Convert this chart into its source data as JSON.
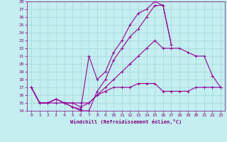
{
  "xlabel": "Windchill (Refroidissement éolien,°C)",
  "xlim": [
    -0.5,
    23.5
  ],
  "ylim": [
    14,
    28
  ],
  "xticks": [
    0,
    1,
    2,
    3,
    4,
    5,
    6,
    7,
    8,
    9,
    10,
    11,
    12,
    13,
    14,
    15,
    16,
    17,
    18,
    19,
    20,
    21,
    22,
    23
  ],
  "yticks": [
    14,
    15,
    16,
    17,
    18,
    19,
    20,
    21,
    22,
    23,
    24,
    25,
    26,
    27,
    28
  ],
  "bg_color": "#c4eef0",
  "line_color": "#990099",
  "grid_color": "#a0d8d8",
  "lines": [
    {
      "x": [
        0,
        1,
        2,
        3,
        4,
        5,
        6,
        7,
        8,
        9,
        10,
        11,
        12,
        13,
        14,
        15,
        16,
        17,
        18,
        19,
        20,
        21,
        22,
        23
      ],
      "y": [
        17,
        15,
        15,
        15,
        15,
        15,
        15,
        15,
        16,
        16.5,
        17,
        17,
        17,
        17.5,
        17.5,
        17.5,
        16.5,
        16.5,
        16.5,
        16.5,
        17,
        17,
        17,
        17
      ]
    },
    {
      "x": [
        0,
        1,
        2,
        3,
        4,
        5,
        6,
        7,
        8,
        9,
        10,
        11,
        12,
        13,
        14,
        15,
        16,
        17,
        18,
        19,
        20,
        21,
        22,
        23
      ],
      "y": [
        17,
        15,
        15,
        15.5,
        15,
        15,
        14.5,
        15,
        16,
        17,
        18,
        19,
        20,
        21,
        22,
        23,
        22,
        22,
        22,
        21.5,
        21,
        21,
        18.5,
        17
      ]
    },
    {
      "x": [
        0,
        1,
        2,
        3,
        4,
        5,
        6,
        7,
        8,
        9,
        10,
        11,
        12,
        13,
        14,
        15,
        16,
        17
      ],
      "y": [
        17,
        15,
        15,
        15.5,
        15,
        14.5,
        14,
        14,
        16.5,
        18,
        20.5,
        22,
        23.5,
        24.5,
        26,
        27.5,
        27.5,
        22.5
      ]
    },
    {
      "x": [
        0,
        1,
        2,
        3,
        4,
        5,
        6,
        7,
        8,
        9,
        10,
        11,
        12,
        13,
        14,
        15,
        16,
        17
      ],
      "y": [
        17,
        15,
        15,
        15.5,
        15,
        14.5,
        14.2,
        21,
        18,
        19,
        21.5,
        23,
        25,
        26.5,
        27,
        28,
        27.5,
        22.5
      ]
    }
  ]
}
